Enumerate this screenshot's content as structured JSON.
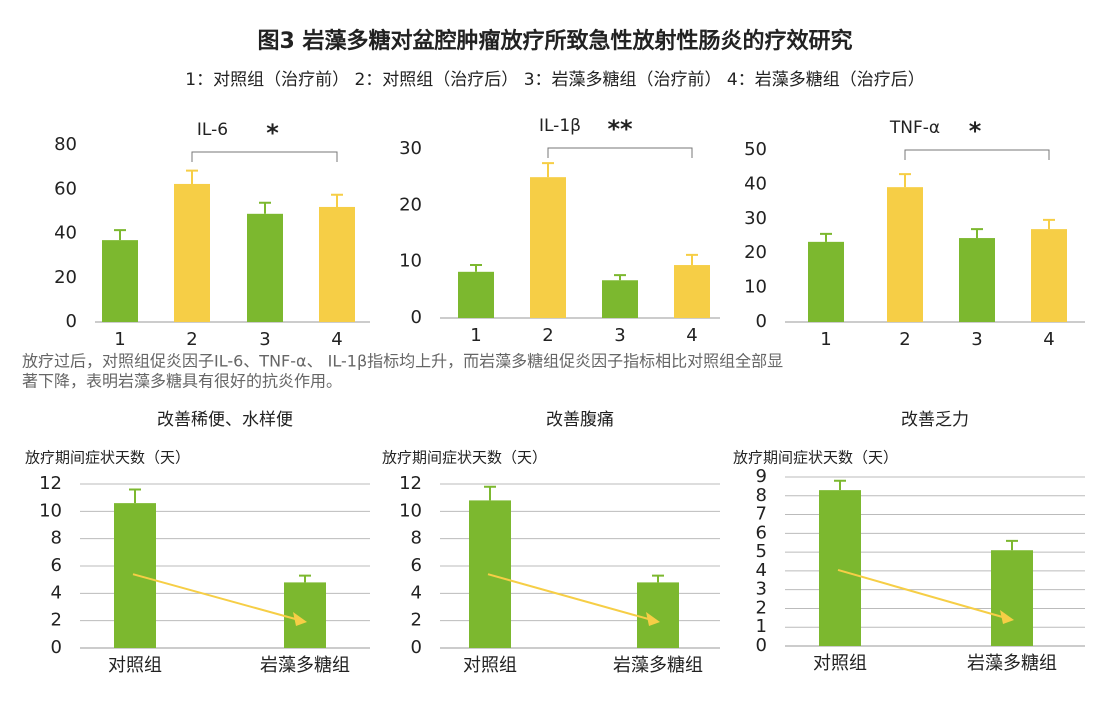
{
  "title": "图3 岩藻多糖对盆腔肿瘤放疗所致急性放射性肠炎的疗效研究",
  "subtitle": "1：对照组（治疗前） 2：对照组（治疗后） 3：岩藻多糖组（治疗前） 4：岩藻多糖组（治疗后）",
  "caption": [
    "放疗过后，对照组促炎因子IL-6、TNF-α、 IL-1β指标均上升，而岩藻多糖组促炎因子指标相比对照组全部显",
    "著下降，表明岩藻多糖具有很好的抗炎作用。"
  ],
  "chart_data": [
    {
      "type": "bar",
      "title": "IL-6",
      "annotation": "*",
      "categories": [
        "1",
        "2",
        "3",
        "4"
      ],
      "values": [
        37,
        62.4,
        48.9,
        52
      ],
      "errors": [
        4.5,
        6,
        5,
        5.5
      ],
      "colors": [
        "#7cb82f",
        "#f6ce46",
        "#7cb82f",
        "#f6ce46"
      ],
      "ylim": [
        0,
        80
      ],
      "yticks": [
        0,
        20,
        40,
        60,
        80
      ],
      "grid": false
    },
    {
      "type": "bar",
      "title": "IL-1β",
      "annotation": "**",
      "categories": [
        "1",
        "2",
        "3",
        "4"
      ],
      "values": [
        8.2,
        25,
        6.7,
        9.4
      ],
      "errors": [
        1.2,
        2.5,
        0.9,
        1.8
      ],
      "colors": [
        "#7cb82f",
        "#f6ce46",
        "#7cb82f",
        "#f6ce46"
      ],
      "ylim": [
        0,
        30
      ],
      "yticks": [
        0,
        10,
        20,
        30
      ],
      "grid": false
    },
    {
      "type": "bar",
      "title": "TNF-α",
      "annotation": "*",
      "categories": [
        "1",
        "2",
        "3",
        "4"
      ],
      "values": [
        23.3,
        39.2,
        24.4,
        27
      ],
      "errors": [
        2.3,
        3.8,
        2.6,
        2.7
      ],
      "colors": [
        "#7cb82f",
        "#f6ce46",
        "#7cb82f",
        "#f6ce46"
      ],
      "ylim": [
        0,
        50
      ],
      "yticks": [
        0,
        10,
        20,
        30,
        40,
        50
      ],
      "grid": false
    },
    {
      "type": "bar",
      "title": "改善稀便、水样便",
      "y_label": "放疗期间症状天数（天）",
      "categories": [
        "对照组",
        "岩藻多糖组"
      ],
      "values": [
        10.6,
        4.8
      ],
      "errors": [
        1,
        0.5
      ],
      "color": "#7cb82f",
      "ylim": [
        0,
        12
      ],
      "yticks": [
        0,
        2,
        4,
        6,
        8,
        10,
        12
      ],
      "grid": true
    },
    {
      "type": "bar",
      "title": "改善腹痛",
      "y_label": "放疗期间症状天数（天）",
      "categories": [
        "对照组",
        "岩藻多糖组"
      ],
      "values": [
        10.8,
        4.8
      ],
      "errors": [
        1,
        0.5
      ],
      "color": "#7cb82f",
      "ylim": [
        0,
        12
      ],
      "yticks": [
        0,
        2,
        4,
        6,
        8,
        10,
        12
      ],
      "grid": true
    },
    {
      "type": "bar",
      "title": "改善乏力",
      "y_label": "放疗期间症状天数（天）",
      "categories": [
        "对照组",
        "岩藻多糖组"
      ],
      "values": [
        8.3,
        5.1
      ],
      "errors": [
        0.5,
        0.5
      ],
      "color": "#7cb82f",
      "ylim": [
        0,
        9
      ],
      "yticks": [
        0,
        1,
        2,
        3,
        4,
        5,
        6,
        7,
        8,
        9
      ],
      "grid": true
    }
  ]
}
